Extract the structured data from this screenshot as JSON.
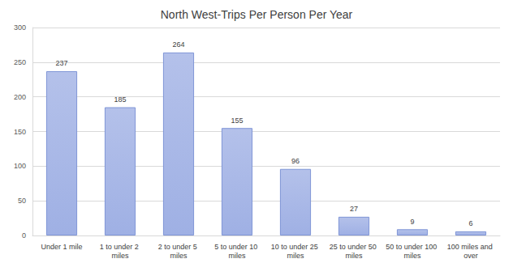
{
  "chart_data": {
    "type": "bar",
    "title": "North West-Trips Per Person Per Year",
    "categories": [
      "Under 1 mile",
      "1 to under 2 miles",
      "2 to under 5 miles",
      "5 to under 10 miles",
      "10 to under 25 miles",
      "25 to under 50 miles",
      "50 to under 100 miles",
      "100 miles and over"
    ],
    "values": [
      237,
      185,
      264,
      155,
      96,
      27,
      9,
      6
    ],
    "color": "#9fb0e4",
    "ylim": [
      0,
      300
    ],
    "yticks": [
      0,
      50,
      100,
      150,
      200,
      250,
      300
    ],
    "grid": true,
    "data_labels": true
  }
}
